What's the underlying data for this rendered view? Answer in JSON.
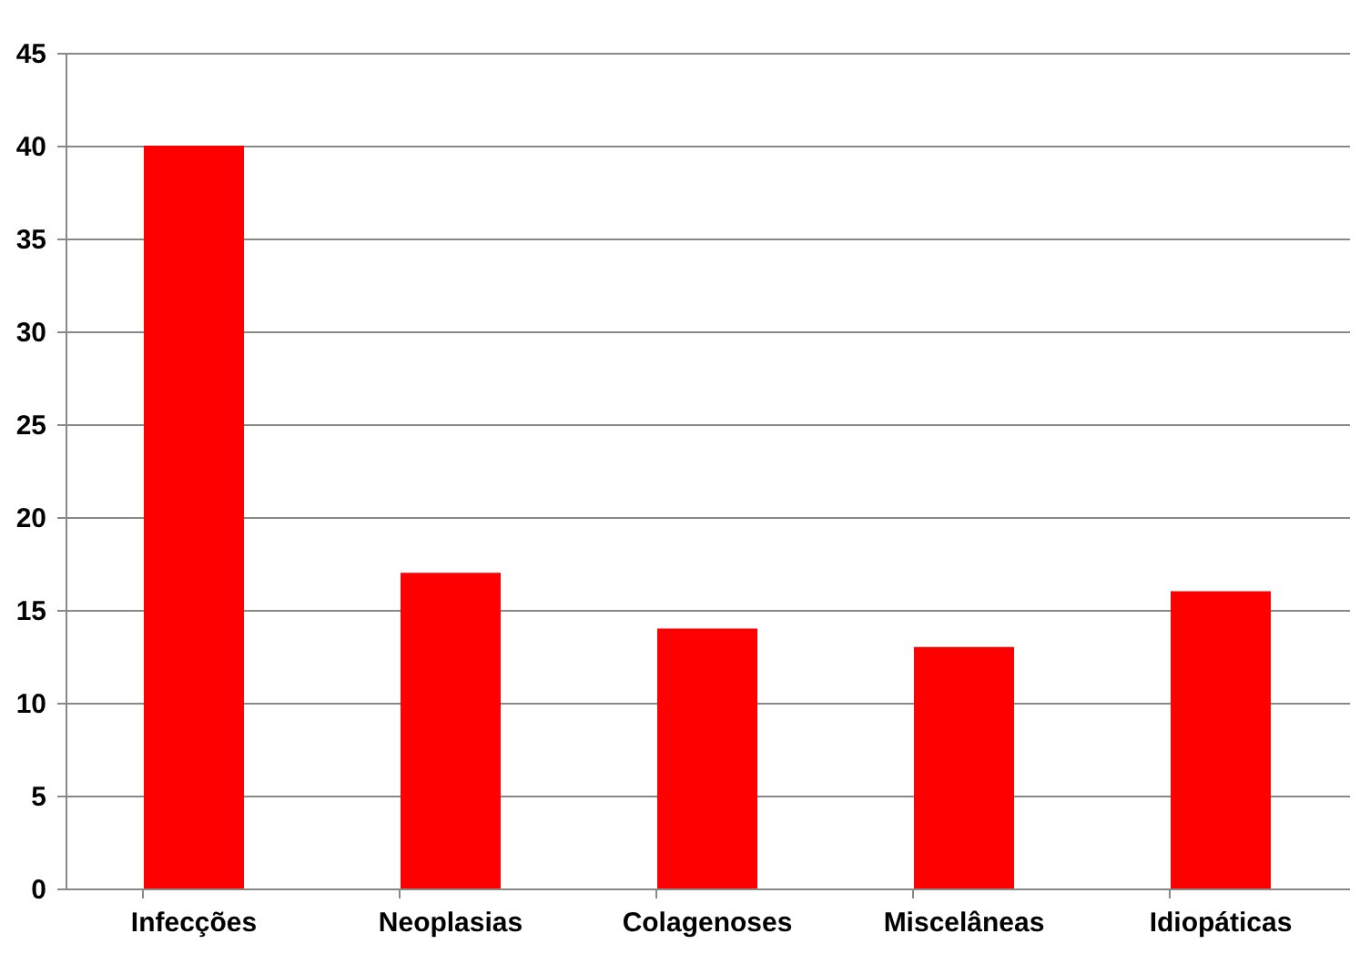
{
  "chart_data": {
    "type": "bar",
    "categories": [
      "Infecções",
      "Neoplasias",
      "Colagenoses",
      "Miscelâneas",
      "Idiopáticas"
    ],
    "values": [
      40,
      17,
      14,
      13,
      16
    ],
    "color": "#ff0000",
    "ylim": [
      0,
      45
    ],
    "yticks": [
      0,
      5,
      10,
      15,
      20,
      25,
      30,
      35,
      40,
      45
    ],
    "grid": "y"
  }
}
